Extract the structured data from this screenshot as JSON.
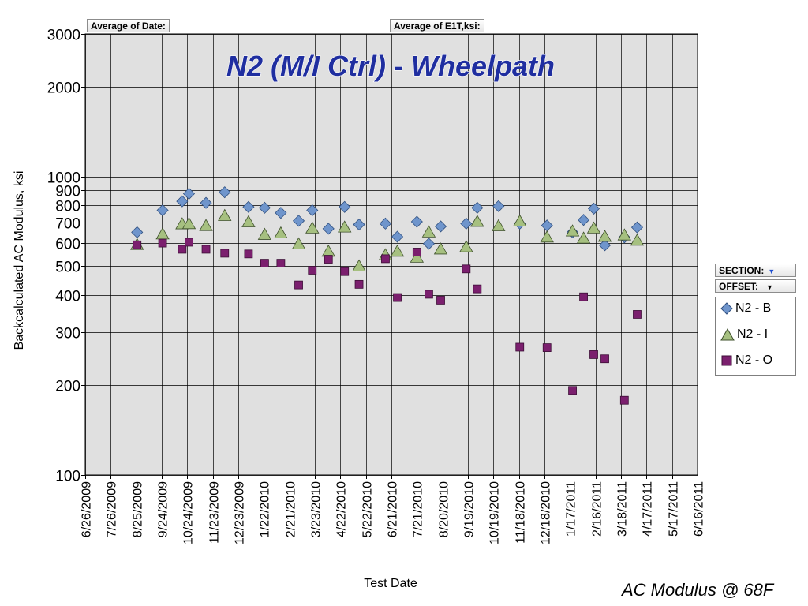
{
  "pivot": {
    "date_button": "Average of Date:",
    "value_button": "Average of E1T,ksi:",
    "section_button": "SECTION:",
    "offset_button": "OFFSET:"
  },
  "caption": "AC Modulus @ 68F",
  "colors": {
    "plot_bg": "#e0e0e0",
    "grid": "#000000",
    "title_fill": "#1f2ea0",
    "series_B": "#6f95cc",
    "series_I": "#a6c080",
    "series_O": "#7b1f6e",
    "dropdown_blue_arrow": "#1f4fd0"
  },
  "chart_data": {
    "type": "scatter",
    "title": "N2 (M/I Ctrl) - Wheelpath",
    "xlabel": "Test Date",
    "ylabel": "Backcalculated AC Modulus, ksi",
    "yscale": "log",
    "ylim": [
      100,
      3000
    ],
    "yticks": [
      100,
      200,
      300,
      400,
      500,
      600,
      700,
      800,
      900,
      1000,
      2000,
      3000
    ],
    "xlim": [
      "6/26/2009",
      "6/16/2011"
    ],
    "xticks": [
      "6/26/2009",
      "7/26/2009",
      "8/25/2009",
      "9/24/2009",
      "10/24/2009",
      "11/23/2009",
      "12/23/2009",
      "1/22/2010",
      "2/21/2010",
      "3/23/2010",
      "4/22/2010",
      "5/22/2010",
      "6/21/2010",
      "7/21/2010",
      "8/20/2010",
      "9/19/2010",
      "10/19/2010",
      "11/18/2010",
      "12/18/2010",
      "1/17/2011",
      "2/16/2011",
      "3/18/2011",
      "4/17/2011",
      "5/17/2011",
      "6/16/2011"
    ],
    "grid": true,
    "legend_position": "right",
    "series": [
      {
        "name": "N2 - B",
        "marker": "diamond",
        "points": [
          [
            "8/26/2009",
            650
          ],
          [
            "9/25/2009",
            770
          ],
          [
            "10/18/2009",
            825
          ],
          [
            "10/26/2009",
            875
          ],
          [
            "11/15/2009",
            815
          ],
          [
            "12/7/2009",
            885
          ],
          [
            "1/4/2010",
            790
          ],
          [
            "1/23/2010",
            785
          ],
          [
            "2/11/2010",
            755
          ],
          [
            "3/4/2010",
            710
          ],
          [
            "3/20/2010",
            770
          ],
          [
            "4/8/2010",
            668
          ],
          [
            "4/27/2010",
            790
          ],
          [
            "5/14/2010",
            690
          ],
          [
            "6/14/2010",
            695
          ],
          [
            "6/28/2010",
            628
          ],
          [
            "7/21/2010",
            705
          ],
          [
            "8/4/2010",
            595
          ],
          [
            "8/18/2010",
            680
          ],
          [
            "9/17/2010",
            695
          ],
          [
            "9/30/2010",
            785
          ],
          [
            "10/25/2010",
            795
          ],
          [
            "11/19/2010",
            695
          ],
          [
            "12/21/2010",
            685
          ],
          [
            "1/20/2011",
            650
          ],
          [
            "2/2/2011",
            715
          ],
          [
            "2/14/2011",
            780
          ],
          [
            "2/27/2011",
            588
          ],
          [
            "3/22/2011",
            625
          ],
          [
            "4/6/2011",
            675
          ]
        ]
      },
      {
        "name": "N2 - I",
        "marker": "triangle",
        "points": [
          [
            "8/26/2009",
            590
          ],
          [
            "9/25/2009",
            640
          ],
          [
            "10/18/2009",
            692
          ],
          [
            "10/26/2009",
            693
          ],
          [
            "11/15/2009",
            683
          ],
          [
            "12/7/2009",
            738
          ],
          [
            "1/4/2010",
            703
          ],
          [
            "1/23/2010",
            638
          ],
          [
            "2/11/2010",
            645
          ],
          [
            "3/4/2010",
            593
          ],
          [
            "3/20/2010",
            670
          ],
          [
            "4/8/2010",
            560
          ],
          [
            "4/27/2010",
            675
          ],
          [
            "5/14/2010",
            500
          ],
          [
            "6/14/2010",
            545
          ],
          [
            "6/28/2010",
            560
          ],
          [
            "7/21/2010",
            535
          ],
          [
            "8/4/2010",
            650
          ],
          [
            "8/18/2010",
            570
          ],
          [
            "9/17/2010",
            580
          ],
          [
            "9/30/2010",
            705
          ],
          [
            "10/25/2010",
            682
          ],
          [
            "11/19/2010",
            707
          ],
          [
            "12/21/2010",
            625
          ],
          [
            "1/20/2011",
            655
          ],
          [
            "2/2/2011",
            620
          ],
          [
            "2/14/2011",
            670
          ],
          [
            "2/27/2011",
            628
          ],
          [
            "3/22/2011",
            635
          ],
          [
            "4/6/2011",
            610
          ]
        ]
      },
      {
        "name": "N2 - O",
        "marker": "square",
        "points": [
          [
            "8/26/2009",
            590
          ],
          [
            "9/25/2009",
            598
          ],
          [
            "10/18/2009",
            570
          ],
          [
            "10/26/2009",
            602
          ],
          [
            "11/15/2009",
            570
          ],
          [
            "12/7/2009",
            553
          ],
          [
            "1/4/2010",
            550
          ],
          [
            "1/23/2010",
            512
          ],
          [
            "2/11/2010",
            512
          ],
          [
            "3/4/2010",
            433
          ],
          [
            "3/20/2010",
            485
          ],
          [
            "4/8/2010",
            528
          ],
          [
            "4/27/2010",
            480
          ],
          [
            "5/14/2010",
            435
          ],
          [
            "6/14/2010",
            530
          ],
          [
            "6/28/2010",
            393
          ],
          [
            "7/21/2010",
            558
          ],
          [
            "8/4/2010",
            403
          ],
          [
            "8/18/2010",
            385
          ],
          [
            "9/17/2010",
            490
          ],
          [
            "9/30/2010",
            420
          ],
          [
            "11/19/2010",
            268
          ],
          [
            "12/21/2010",
            267
          ],
          [
            "1/20/2011",
            192
          ],
          [
            "2/2/2011",
            395
          ],
          [
            "2/14/2011",
            253
          ],
          [
            "2/27/2011",
            245
          ],
          [
            "3/22/2011",
            178
          ],
          [
            "4/6/2011",
            345
          ]
        ]
      }
    ]
  }
}
